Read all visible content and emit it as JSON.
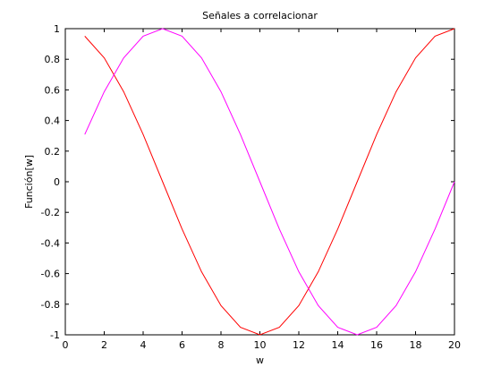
{
  "chart_data": {
    "type": "line",
    "title": "Señales a correlacionar",
    "xlabel": "w",
    "ylabel": "Función[w]",
    "xlim": [
      0,
      20
    ],
    "ylim": [
      -1,
      1
    ],
    "x_ticks": [
      "0",
      "2",
      "4",
      "6",
      "8",
      "10",
      "12",
      "14",
      "16",
      "18",
      "20"
    ],
    "y_ticks": [
      "-1",
      "-0.8",
      "-0.6",
      "-0.4",
      "-0.2",
      "0",
      "0.2",
      "0.4",
      "0.6",
      "0.8",
      "1"
    ],
    "grid": false,
    "series": [
      {
        "color": "#ff0000",
        "x": [
          1,
          2,
          3,
          4,
          5,
          6,
          7,
          8,
          9,
          10,
          11,
          12,
          13,
          14,
          15,
          16,
          17,
          18,
          19,
          20
        ],
        "y": [
          0.951,
          0.809,
          0.588,
          0.309,
          0.0,
          -0.309,
          -0.588,
          -0.809,
          -0.951,
          -1.0,
          -0.951,
          -0.809,
          -0.588,
          -0.309,
          0.0,
          0.309,
          0.588,
          0.809,
          0.951,
          1.0
        ]
      },
      {
        "color": "#ff00ff",
        "x": [
          1,
          2,
          3,
          4,
          5,
          6,
          7,
          8,
          9,
          10,
          11,
          12,
          13,
          14,
          15,
          16,
          17,
          18,
          19,
          20
        ],
        "y": [
          0.309,
          0.588,
          0.809,
          0.951,
          1.0,
          0.951,
          0.809,
          0.588,
          0.309,
          0.0,
          -0.309,
          -0.588,
          -0.809,
          -0.951,
          -1.0,
          -0.951,
          -0.809,
          -0.588,
          -0.309,
          0.0
        ]
      }
    ]
  }
}
